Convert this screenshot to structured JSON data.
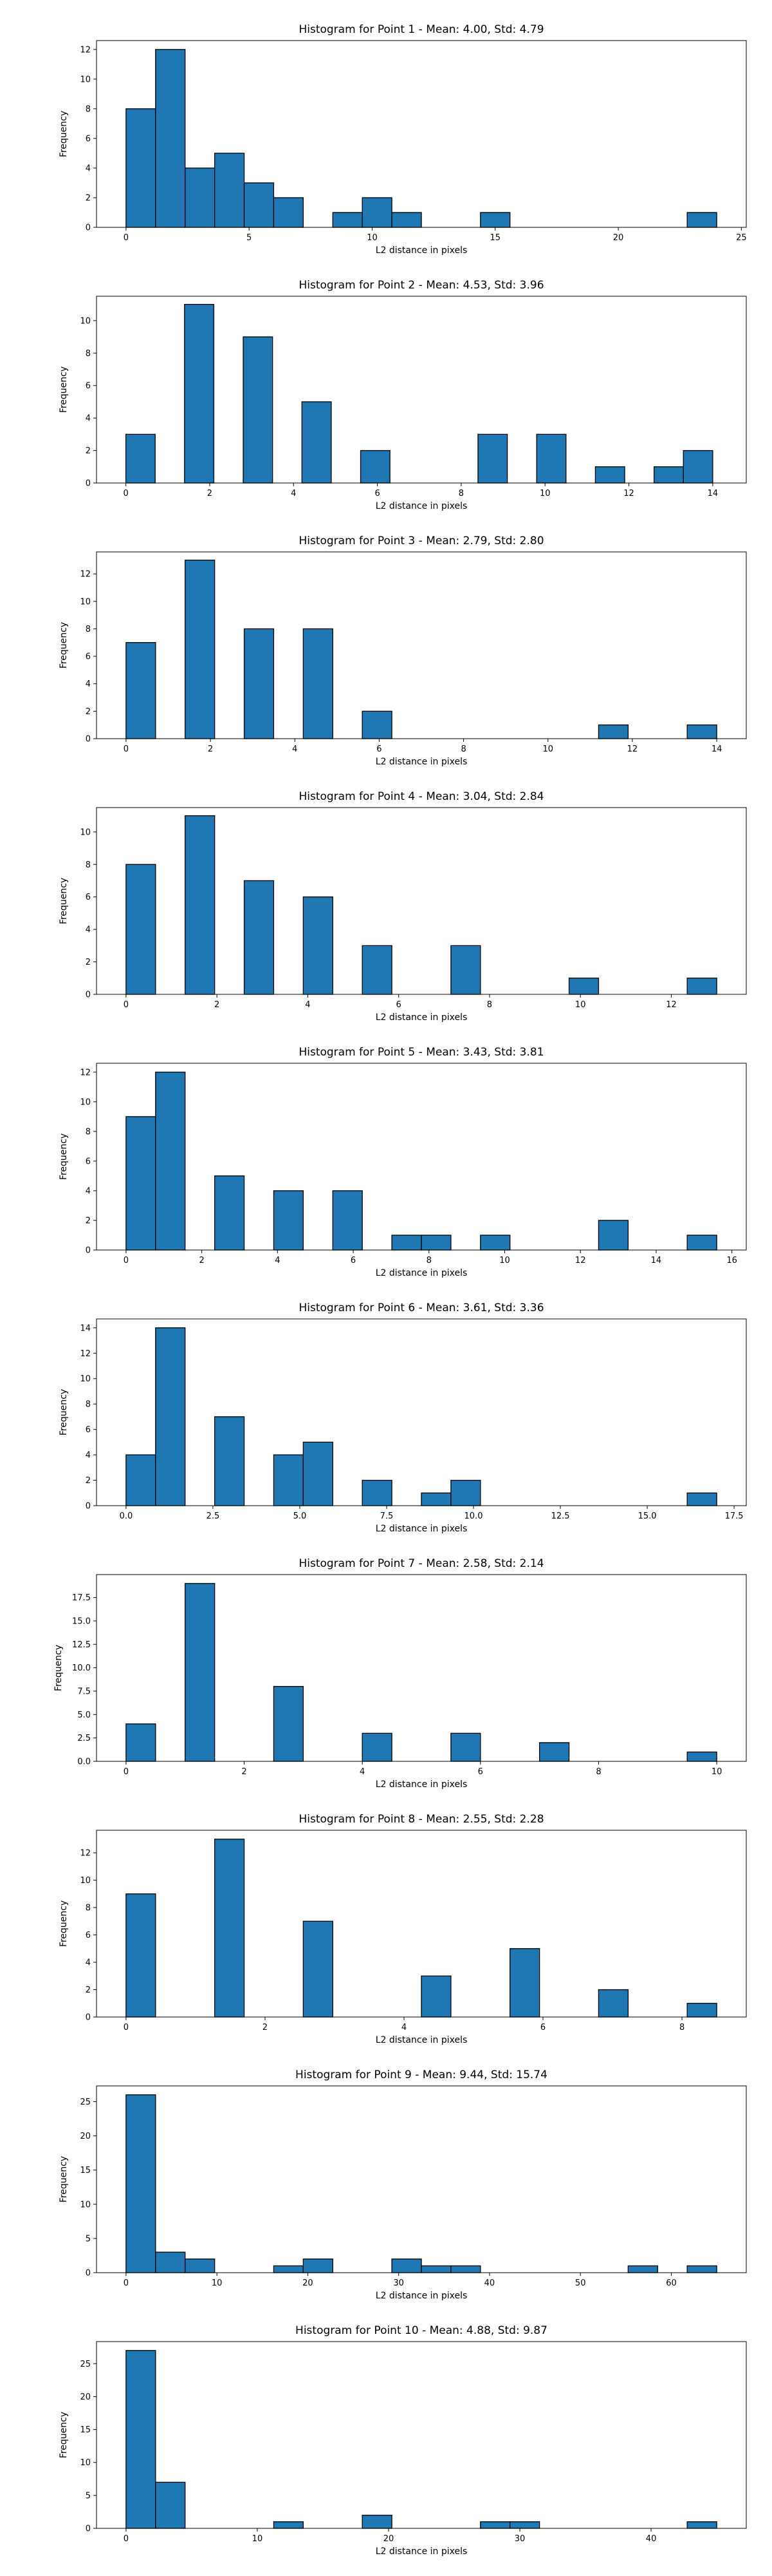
{
  "chart_data": [
    {
      "type": "histogram",
      "title": "Histogram for Point 1 - Mean: 4.00, Std: 4.79",
      "xlabel": "L2 distance in pixels",
      "ylabel": "Frequency",
      "xlim": [
        -1.2,
        25.2
      ],
      "ylim": [
        0,
        12.6
      ],
      "xticks": [
        0,
        5,
        10,
        15,
        20,
        25
      ],
      "xtick_labels": [
        "0",
        "5",
        "10",
        "15",
        "20",
        "25"
      ],
      "yticks": [
        0,
        2,
        4,
        6,
        8,
        10,
        12
      ],
      "ytick_labels": [
        "0",
        "2",
        "4",
        "6",
        "8",
        "10",
        "12"
      ],
      "bins": [
        {
          "x0": 0.0,
          "x1": 1.2,
          "count": 8
        },
        {
          "x0": 1.2,
          "x1": 2.4,
          "count": 12
        },
        {
          "x0": 2.4,
          "x1": 3.6,
          "count": 4
        },
        {
          "x0": 3.6,
          "x1": 4.8,
          "count": 5
        },
        {
          "x0": 4.8,
          "x1": 6.0,
          "count": 3
        },
        {
          "x0": 6.0,
          "x1": 7.2,
          "count": 2
        },
        {
          "x0": 8.4,
          "x1": 9.6,
          "count": 1
        },
        {
          "x0": 9.6,
          "x1": 10.8,
          "count": 2
        },
        {
          "x0": 10.8,
          "x1": 12.0,
          "count": 1
        },
        {
          "x0": 14.4,
          "x1": 15.6,
          "count": 1
        },
        {
          "x0": 22.8,
          "x1": 24.0,
          "count": 1
        }
      ]
    },
    {
      "type": "histogram",
      "title": "Histogram for Point 2 - Mean: 4.53, Std: 3.96",
      "xlabel": "L2 distance in pixels",
      "ylabel": "Frequency",
      "xlim": [
        -0.7,
        14.8
      ],
      "ylim": [
        0,
        11.5
      ],
      "xticks": [
        0,
        2,
        4,
        6,
        8,
        10,
        12,
        14
      ],
      "xtick_labels": [
        "0",
        "2",
        "4",
        "6",
        "8",
        "10",
        "12",
        "14"
      ],
      "yticks": [
        0,
        2,
        4,
        6,
        8,
        10
      ],
      "ytick_labels": [
        "0",
        "2",
        "4",
        "6",
        "8",
        "10"
      ],
      "bins": [
        {
          "x0": 0.0,
          "x1": 0.7,
          "count": 3
        },
        {
          "x0": 1.4,
          "x1": 2.1,
          "count": 11
        },
        {
          "x0": 2.8,
          "x1": 3.5,
          "count": 9
        },
        {
          "x0": 4.2,
          "x1": 4.9,
          "count": 5
        },
        {
          "x0": 5.6,
          "x1": 6.3,
          "count": 2
        },
        {
          "x0": 8.4,
          "x1": 9.1,
          "count": 3
        },
        {
          "x0": 9.8,
          "x1": 10.5,
          "count": 3
        },
        {
          "x0": 11.2,
          "x1": 11.9,
          "count": 1
        },
        {
          "x0": 12.6,
          "x1": 13.3,
          "count": 1
        },
        {
          "x0": 13.3,
          "x1": 14.0,
          "count": 2
        }
      ]
    },
    {
      "type": "histogram",
      "title": "Histogram for Point 3 - Mean: 2.79, Std: 2.80",
      "xlabel": "L2 distance in pixels",
      "ylabel": "Frequency",
      "xlim": [
        -0.7,
        14.7
      ],
      "ylim": [
        0,
        13.6
      ],
      "xticks": [
        0,
        2,
        4,
        6,
        8,
        10,
        12,
        14
      ],
      "xtick_labels": [
        "0",
        "2",
        "4",
        "6",
        "8",
        "10",
        "12",
        "14"
      ],
      "yticks": [
        0,
        2,
        4,
        6,
        8,
        10,
        12
      ],
      "ytick_labels": [
        "0",
        "2",
        "4",
        "6",
        "8",
        "10",
        "12"
      ],
      "bins": [
        {
          "x0": 0.0,
          "x1": 0.7,
          "count": 7
        },
        {
          "x0": 1.4,
          "x1": 2.1,
          "count": 13
        },
        {
          "x0": 2.8,
          "x1": 3.5,
          "count": 8
        },
        {
          "x0": 4.2,
          "x1": 4.9,
          "count": 8
        },
        {
          "x0": 5.6,
          "x1": 6.3,
          "count": 2
        },
        {
          "x0": 11.2,
          "x1": 11.9,
          "count": 1
        },
        {
          "x0": 13.3,
          "x1": 14.0,
          "count": 1
        }
      ]
    },
    {
      "type": "histogram",
      "title": "Histogram for Point 4 - Mean: 3.04, Std: 2.84",
      "xlabel": "L2 distance in pixels",
      "ylabel": "Frequency",
      "xlim": [
        -0.65,
        13.65
      ],
      "ylim": [
        0,
        11.5
      ],
      "xticks": [
        0,
        2,
        4,
        6,
        8,
        10,
        12
      ],
      "xtick_labels": [
        "0",
        "2",
        "4",
        "6",
        "8",
        "10",
        "12"
      ],
      "yticks": [
        0,
        2,
        4,
        6,
        8,
        10
      ],
      "ytick_labels": [
        "0",
        "2",
        "4",
        "6",
        "8",
        "10"
      ],
      "bins": [
        {
          "x0": 0.0,
          "x1": 0.65,
          "count": 8
        },
        {
          "x0": 1.3,
          "x1": 1.95,
          "count": 11
        },
        {
          "x0": 2.6,
          "x1": 3.25,
          "count": 7
        },
        {
          "x0": 3.9,
          "x1": 4.55,
          "count": 6
        },
        {
          "x0": 5.2,
          "x1": 5.85,
          "count": 3
        },
        {
          "x0": 7.15,
          "x1": 7.8,
          "count": 3
        },
        {
          "x0": 9.75,
          "x1": 10.4,
          "count": 1
        },
        {
          "x0": 12.35,
          "x1": 13.0,
          "count": 1
        }
      ]
    },
    {
      "type": "histogram",
      "title": "Histogram for Point 5 - Mean: 3.43, Std: 3.81",
      "xlabel": "L2 distance in pixels",
      "ylabel": "Frequency",
      "xlim": [
        -0.78,
        16.38
      ],
      "ylim": [
        0,
        12.6
      ],
      "xticks": [
        0,
        2,
        4,
        6,
        8,
        10,
        12,
        14,
        16
      ],
      "xtick_labels": [
        "0",
        "2",
        "4",
        "6",
        "8",
        "10",
        "12",
        "14",
        "16"
      ],
      "yticks": [
        0,
        2,
        4,
        6,
        8,
        10,
        12
      ],
      "ytick_labels": [
        "0",
        "2",
        "4",
        "6",
        "8",
        "10",
        "12"
      ],
      "bins": [
        {
          "x0": 0.0,
          "x1": 0.78,
          "count": 9
        },
        {
          "x0": 0.78,
          "x1": 1.56,
          "count": 12
        },
        {
          "x0": 2.34,
          "x1": 3.12,
          "count": 5
        },
        {
          "x0": 3.9,
          "x1": 4.68,
          "count": 4
        },
        {
          "x0": 5.46,
          "x1": 6.24,
          "count": 4
        },
        {
          "x0": 7.02,
          "x1": 7.8,
          "count": 1
        },
        {
          "x0": 7.8,
          "x1": 8.58,
          "count": 1
        },
        {
          "x0": 9.36,
          "x1": 10.14,
          "count": 1
        },
        {
          "x0": 12.48,
          "x1": 13.26,
          "count": 2
        },
        {
          "x0": 14.82,
          "x1": 15.6,
          "count": 1
        }
      ]
    },
    {
      "type": "histogram",
      "title": "Histogram for Point 6 - Mean: 3.61, Std: 3.36",
      "xlabel": "L2 distance in pixels",
      "ylabel": "Frequency",
      "xlim": [
        -0.85,
        17.85
      ],
      "ylim": [
        0,
        14.7
      ],
      "xticks": [
        0,
        2.5,
        5,
        7.5,
        10,
        12.5,
        15,
        17.5
      ],
      "xtick_labels": [
        "0.0",
        "2.5",
        "5.0",
        "7.5",
        "10.0",
        "12.5",
        "15.0",
        "17.5"
      ],
      "yticks": [
        0,
        2,
        4,
        6,
        8,
        10,
        12,
        14
      ],
      "ytick_labels": [
        "0",
        "2",
        "4",
        "6",
        "8",
        "10",
        "12",
        "14"
      ],
      "bins": [
        {
          "x0": 0.0,
          "x1": 0.85,
          "count": 4
        },
        {
          "x0": 0.85,
          "x1": 1.7,
          "count": 14
        },
        {
          "x0": 2.55,
          "x1": 3.4,
          "count": 7
        },
        {
          "x0": 4.25,
          "x1": 5.1,
          "count": 4
        },
        {
          "x0": 5.1,
          "x1": 5.95,
          "count": 5
        },
        {
          "x0": 6.8,
          "x1": 7.65,
          "count": 2
        },
        {
          "x0": 8.5,
          "x1": 9.35,
          "count": 1
        },
        {
          "x0": 9.35,
          "x1": 10.2,
          "count": 2
        },
        {
          "x0": 16.15,
          "x1": 17.0,
          "count": 1
        }
      ]
    },
    {
      "type": "histogram",
      "title": "Histogram for Point 7 - Mean: 2.58, Std: 2.14",
      "xlabel": "L2 distance in pixels",
      "ylabel": "Frequency",
      "xlim": [
        -0.5,
        10.5
      ],
      "ylim": [
        0,
        19.95
      ],
      "xticks": [
        0,
        2,
        4,
        6,
        8,
        10
      ],
      "xtick_labels": [
        "0",
        "2",
        "4",
        "6",
        "8",
        "10"
      ],
      "yticks": [
        0,
        2.5,
        5,
        7.5,
        10,
        12.5,
        15,
        17.5
      ],
      "ytick_labels": [
        "0.0",
        "2.5",
        "5.0",
        "7.5",
        "10.0",
        "12.5",
        "15.0",
        "17.5"
      ],
      "bins": [
        {
          "x0": 0.0,
          "x1": 0.5,
          "count": 4
        },
        {
          "x0": 1.0,
          "x1": 1.5,
          "count": 19
        },
        {
          "x0": 2.5,
          "x1": 3.0,
          "count": 8
        },
        {
          "x0": 4.0,
          "x1": 4.5,
          "count": 3
        },
        {
          "x0": 5.5,
          "x1": 6.0,
          "count": 3
        },
        {
          "x0": 7.0,
          "x1": 7.5,
          "count": 2
        },
        {
          "x0": 9.5,
          "x1": 10.0,
          "count": 1
        }
      ]
    },
    {
      "type": "histogram",
      "title": "Histogram for Point 8 - Mean: 2.55, Std: 2.28",
      "xlabel": "L2 distance in pixels",
      "ylabel": "Frequency",
      "xlim": [
        -0.425,
        8.925
      ],
      "ylim": [
        0,
        13.65
      ],
      "xticks": [
        0,
        2,
        4,
        6,
        8
      ],
      "xtick_labels": [
        "0",
        "2",
        "4",
        "6",
        "8"
      ],
      "yticks": [
        0,
        2,
        4,
        6,
        8,
        10,
        12
      ],
      "ytick_labels": [
        "0",
        "2",
        "4",
        "6",
        "8",
        "10",
        "12"
      ],
      "bins": [
        {
          "x0": 0.0,
          "x1": 0.425,
          "count": 9
        },
        {
          "x0": 1.275,
          "x1": 1.7,
          "count": 13
        },
        {
          "x0": 2.55,
          "x1": 2.975,
          "count": 7
        },
        {
          "x0": 4.25,
          "x1": 4.675,
          "count": 3
        },
        {
          "x0": 5.525,
          "x1": 5.95,
          "count": 5
        },
        {
          "x0": 6.8,
          "x1": 7.225,
          "count": 2
        },
        {
          "x0": 8.075,
          "x1": 8.5,
          "count": 1
        }
      ]
    },
    {
      "type": "histogram",
      "title": "Histogram for Point 9 - Mean: 9.44, Std: 15.74",
      "xlabel": "L2 distance in pixels",
      "ylabel": "Frequency",
      "xlim": [
        -3.25,
        68.25
      ],
      "ylim": [
        0,
        27.3
      ],
      "xticks": [
        0,
        10,
        20,
        30,
        40,
        50,
        60
      ],
      "xtick_labels": [
        "0",
        "10",
        "20",
        "30",
        "40",
        "50",
        "60"
      ],
      "yticks": [
        0,
        5,
        10,
        15,
        20,
        25
      ],
      "ytick_labels": [
        "0",
        "5",
        "10",
        "15",
        "20",
        "25"
      ],
      "bins": [
        {
          "x0": 0.0,
          "x1": 3.25,
          "count": 26
        },
        {
          "x0": 3.25,
          "x1": 6.5,
          "count": 3
        },
        {
          "x0": 6.5,
          "x1": 9.75,
          "count": 2
        },
        {
          "x0": 16.25,
          "x1": 19.5,
          "count": 1
        },
        {
          "x0": 19.5,
          "x1": 22.75,
          "count": 2
        },
        {
          "x0": 29.25,
          "x1": 32.5,
          "count": 2
        },
        {
          "x0": 32.5,
          "x1": 35.75,
          "count": 1
        },
        {
          "x0": 35.75,
          "x1": 39.0,
          "count": 1
        },
        {
          "x0": 55.25,
          "x1": 58.5,
          "count": 1
        },
        {
          "x0": 61.75,
          "x1": 65.0,
          "count": 1
        }
      ]
    },
    {
      "type": "histogram",
      "title": "Histogram for Point 10 - Mean: 4.88, Std: 9.87",
      "xlabel": "L2 distance in pixels",
      "ylabel": "Frequency",
      "xlim": [
        -2.25,
        47.25
      ],
      "ylim": [
        0,
        28.35
      ],
      "xticks": [
        0,
        10,
        20,
        30,
        40
      ],
      "xtick_labels": [
        "0",
        "10",
        "20",
        "30",
        "40"
      ],
      "yticks": [
        0,
        5,
        10,
        15,
        20,
        25
      ],
      "ytick_labels": [
        "0",
        "5",
        "10",
        "15",
        "20",
        "25"
      ],
      "bins": [
        {
          "x0": 0.0,
          "x1": 2.25,
          "count": 27
        },
        {
          "x0": 2.25,
          "x1": 4.5,
          "count": 7
        },
        {
          "x0": 11.25,
          "x1": 13.5,
          "count": 1
        },
        {
          "x0": 18.0,
          "x1": 20.25,
          "count": 2
        },
        {
          "x0": 27.0,
          "x1": 29.25,
          "count": 1
        },
        {
          "x0": 29.25,
          "x1": 31.5,
          "count": 1
        },
        {
          "x0": 42.75,
          "x1": 45.0,
          "count": 1
        }
      ]
    }
  ]
}
